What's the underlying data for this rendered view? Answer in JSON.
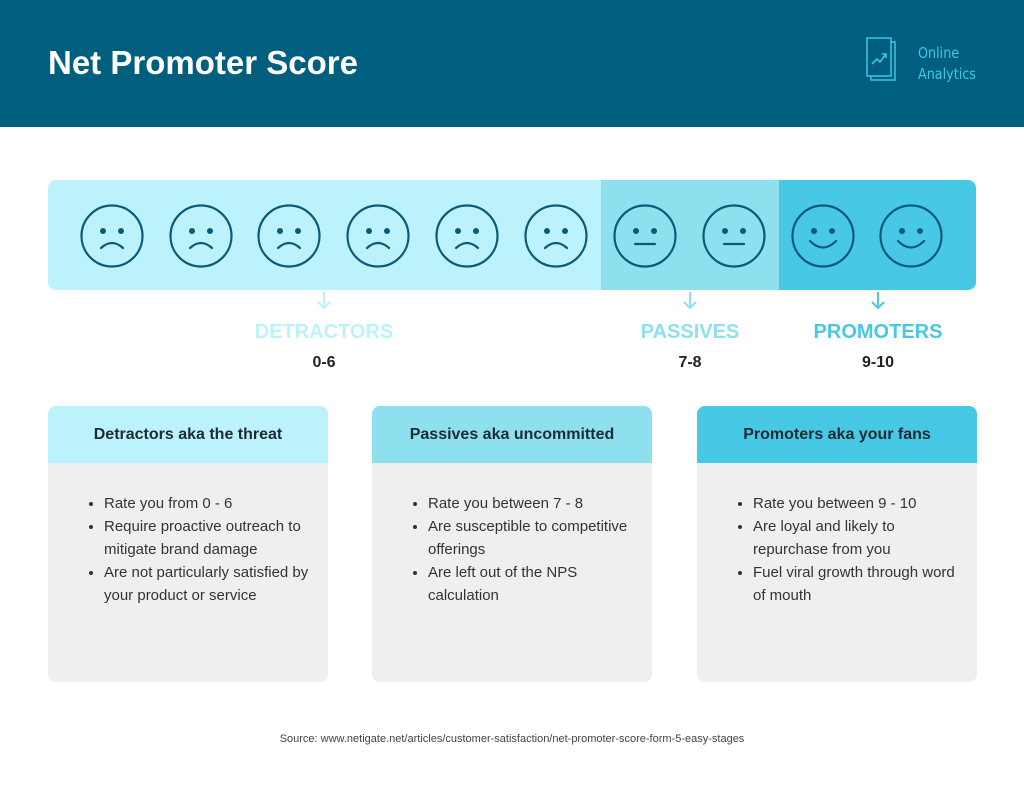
{
  "header": {
    "title": "Net Promoter Score",
    "logo_text": [
      "Online",
      "Analytics"
    ]
  },
  "colors": {
    "header": "#005f7f",
    "detractors": "#bcf2fc",
    "passives": "#8ee0ef",
    "promoters": "#47c8e4",
    "face": "#0a5a78"
  },
  "scale": {
    "faces": [
      "sad",
      "sad",
      "sad",
      "sad",
      "sad",
      "sad",
      "neutral",
      "neutral",
      "happy",
      "happy"
    ]
  },
  "categories": [
    {
      "name": "DETRACTORS",
      "range": "0-6",
      "color": "#bcf2fc"
    },
    {
      "name": "PASSIVES",
      "range": "7-8",
      "color": "#8ee0ef"
    },
    {
      "name": "PROMOTERS",
      "range": "9-10",
      "color": "#47c8e4"
    }
  ],
  "cards": [
    {
      "title": "Detractors aka the threat",
      "items": [
        "Rate you from 0 - 6",
        "Require proactive outreach to mitigate brand damage",
        "Are not particularly satisfied by your product or service"
      ]
    },
    {
      "title": "Passives aka uncommitted",
      "items": [
        "Rate you between 7 - 8",
        "Are susceptible to competitive offerings",
        "Are left out of the NPS calculation"
      ]
    },
    {
      "title": "Promoters aka your fans",
      "items": [
        "Rate you between 9 - 10",
        "Are loyal and likely to repurchase from you",
        "Fuel viral growth through word of mouth"
      ]
    }
  ],
  "source": "Source: www.netigate.net/articles/customer-satisfaction/net-promoter-score-form-5-easy-stages"
}
